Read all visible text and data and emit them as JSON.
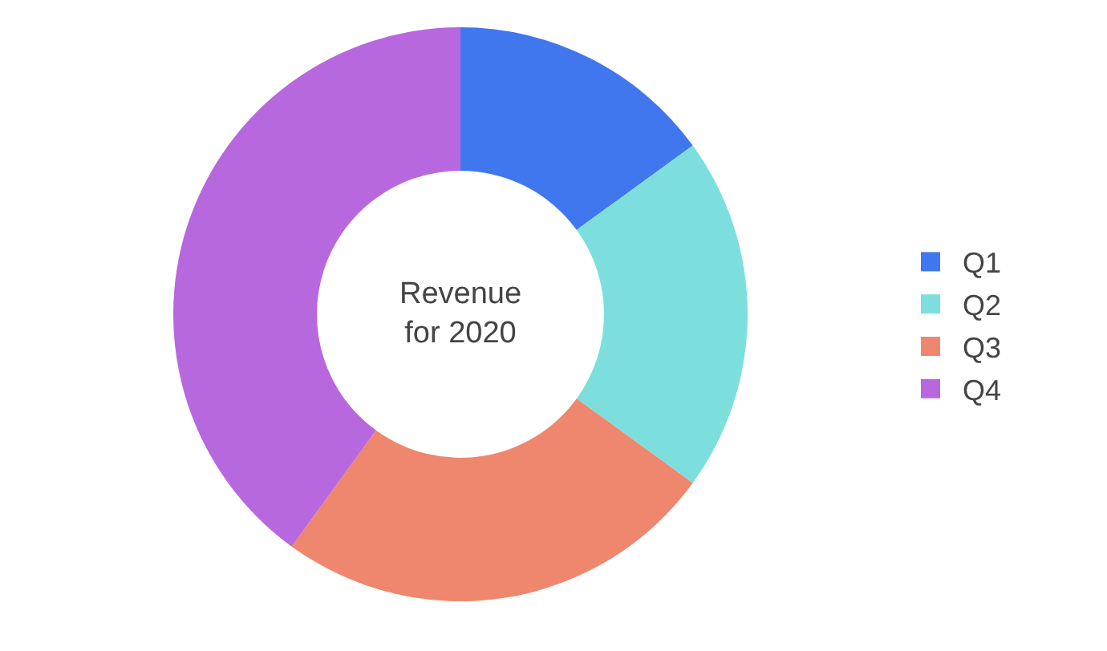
{
  "chart_data": {
    "type": "donut",
    "title": "Revenue\nfor 2020",
    "categories": [
      "Q1",
      "Q2",
      "Q3",
      "Q4"
    ],
    "values": [
      15,
      20,
      25,
      40
    ],
    "colors": [
      "#4177ee",
      "#7ddfdd",
      "#ee876d",
      "#b868df"
    ],
    "legend": "right"
  }
}
